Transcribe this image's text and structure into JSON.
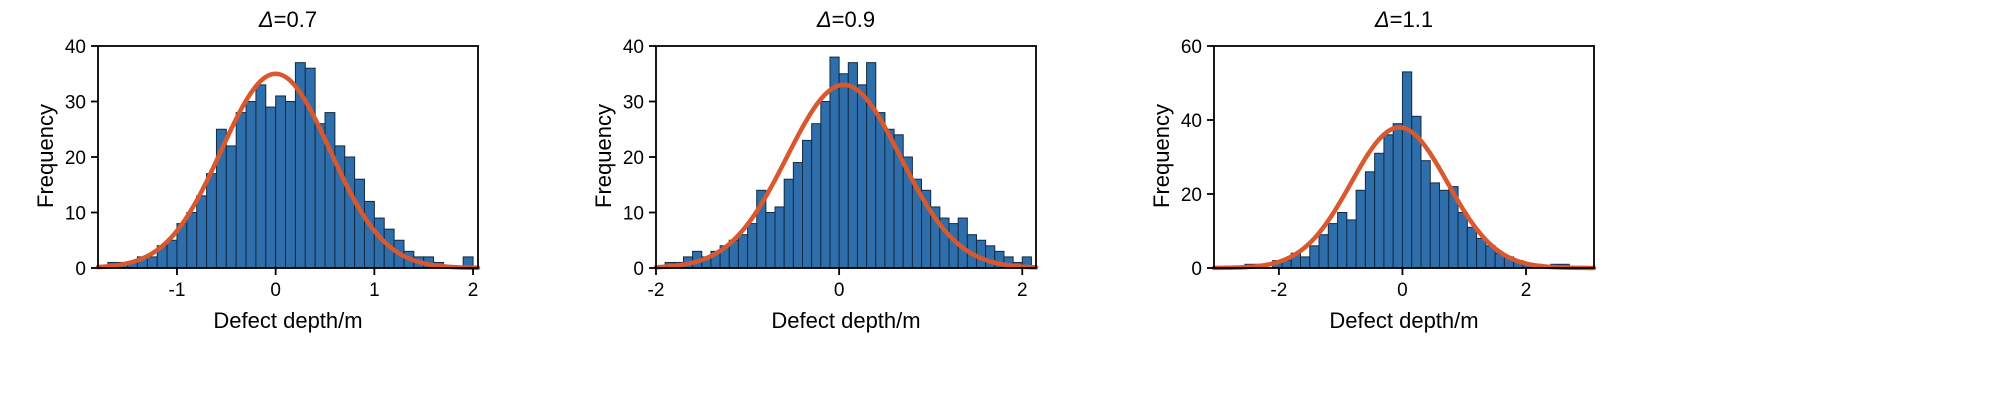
{
  "page": {
    "background": "#ffffff"
  },
  "colors": {
    "bar_fill": "#2e6fab",
    "bar_edge": "#122a47",
    "curve": "#d9582e",
    "axis": "#000000"
  },
  "chart_data": [
    {
      "type": "bar",
      "subtype": "histogram-with-gaussian-fit",
      "title": "Δ=0.7",
      "xlabel": "Defect depth/m",
      "ylabel": "Frequency",
      "xlim": [
        -1.8,
        2.05
      ],
      "ylim": [
        0,
        40
      ],
      "xticks": [
        -1,
        0,
        1,
        2
      ],
      "yticks": [
        0,
        10,
        20,
        30,
        40
      ],
      "grid": false,
      "legend": "none",
      "bin_start": -1.7,
      "bin_width": 0.1,
      "frequencies": [
        1,
        1,
        1,
        2,
        2,
        4,
        5,
        8,
        10,
        13,
        17,
        25,
        22,
        28,
        30,
        33,
        29,
        31,
        30,
        37,
        36,
        26,
        28,
        22,
        20,
        16,
        12,
        9,
        7,
        5,
        3,
        2,
        2,
        1,
        0,
        0,
        2
      ],
      "fit": {
        "shape": "gaussian",
        "amplitude": 35,
        "mean": 0.0,
        "sigma": 0.55
      }
    },
    {
      "type": "bar",
      "subtype": "histogram-with-gaussian-fit",
      "title": "Δ=0.9",
      "xlabel": "Defect depth/m",
      "ylabel": "Frequency",
      "xlim": [
        -2.0,
        2.15
      ],
      "ylim": [
        0,
        40
      ],
      "xticks": [
        -2,
        0,
        2
      ],
      "yticks": [
        0,
        10,
        20,
        30,
        40
      ],
      "grid": false,
      "legend": "none",
      "bin_start": -1.9,
      "bin_width": 0.1,
      "frequencies": [
        1,
        1,
        2,
        3,
        2,
        3,
        4,
        5,
        6,
        8,
        14,
        10,
        11,
        16,
        19,
        23,
        26,
        30,
        38,
        35,
        37,
        33,
        37,
        28,
        25,
        24,
        20,
        16,
        14,
        11,
        9,
        8,
        9,
        6,
        5,
        4,
        3,
        2,
        1,
        2
      ],
      "fit": {
        "shape": "gaussian",
        "amplitude": 33,
        "mean": 0.05,
        "sigma": 0.62
      }
    },
    {
      "type": "bar",
      "subtype": "histogram-with-gaussian-fit",
      "title": "Δ=1.1",
      "xlabel": "Defect depth/m",
      "ylabel": "Frequency",
      "xlim": [
        -3.05,
        3.1
      ],
      "ylim": [
        0,
        60
      ],
      "xticks": [
        -2,
        0,
        2
      ],
      "yticks": [
        0,
        20,
        40,
        60
      ],
      "grid": false,
      "legend": "none",
      "bin_start": -2.55,
      "bin_width": 0.15,
      "frequencies": [
        1,
        1,
        0,
        2,
        2,
        4,
        3,
        6,
        9,
        12,
        15,
        13,
        21,
        26,
        31,
        36,
        39,
        53,
        41,
        29,
        23,
        21,
        22,
        15,
        11,
        8,
        6,
        4,
        3,
        2,
        1,
        1,
        0,
        1,
        1
      ],
      "fit": {
        "shape": "gaussian",
        "amplitude": 38,
        "mean": -0.05,
        "sigma": 0.78
      }
    }
  ]
}
